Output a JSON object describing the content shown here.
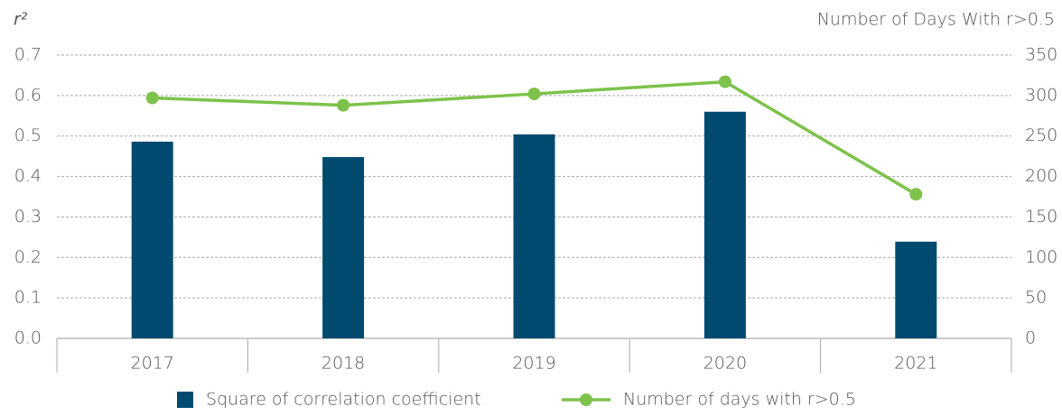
{
  "chart_data": {
    "type": "bar_line",
    "y_label": "r²",
    "y2_label": "Number of Days With r>0.5",
    "categories": [
      "2017",
      "2018",
      "2019",
      "2020",
      "2021"
    ],
    "series": [
      {
        "name": "Square of correlation coefficient",
        "color": "#004a70",
        "type": "bar",
        "values": [
          0.486,
          0.448,
          0.504,
          0.56,
          0.239
        ]
      },
      {
        "name": "Number of days with r>0.5",
        "color": "#7dc24b",
        "type": "line",
        "axis": "y2",
        "values": [
          297,
          288,
          302,
          317,
          178
        ]
      }
    ],
    "ylim": [
      0,
      0.7
    ],
    "yticks": [
      {
        "value": 0,
        "label": "0.0"
      },
      0.1,
      0.2,
      0.3,
      0.4,
      0.5,
      0.6,
      0.7
    ],
    "y2lim": [
      0,
      350
    ],
    "y2ticks": [
      0,
      50,
      100,
      150,
      200,
      250,
      300,
      350
    ],
    "grid": true,
    "legend": "bottom"
  }
}
